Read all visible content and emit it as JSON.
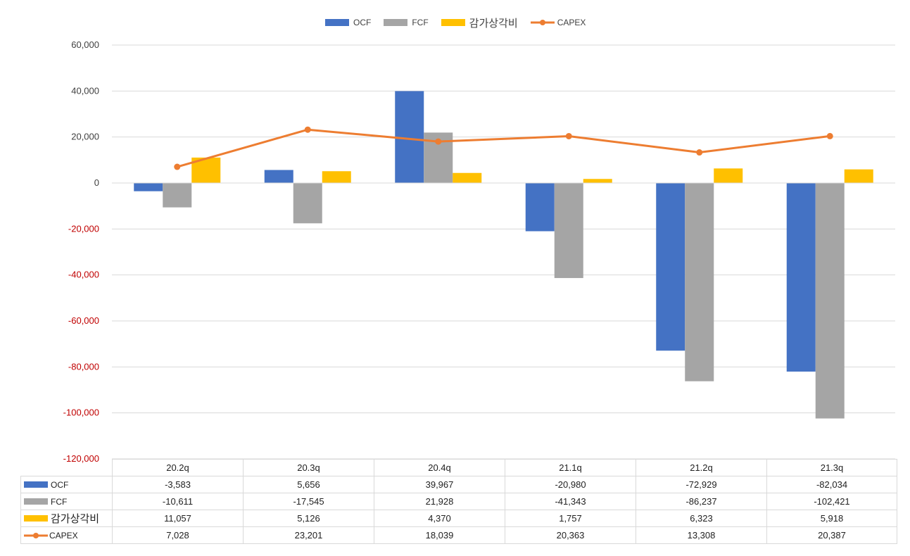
{
  "legend": {
    "ocf": "OCF",
    "fcf": "FCF",
    "dep": "감가상각비",
    "capex": "CAPEX"
  },
  "colors": {
    "ocf": "#4472C4",
    "fcf": "#A5A5A5",
    "dep": "#FFC000",
    "capex": "#ED7D31",
    "negative_tick": "#C00000",
    "positive_tick": "#404040"
  },
  "chart_data": {
    "type": "bar",
    "combo_line_series": "CAPEX",
    "categories": [
      "20.2q",
      "20.3q",
      "20.4q",
      "21.1q",
      "21.2q",
      "21.3q"
    ],
    "series": [
      {
        "name": "OCF",
        "kind": "bar",
        "values": [
          -3583,
          5656,
          39967,
          -20980,
          -72929,
          -82034
        ]
      },
      {
        "name": "FCF",
        "kind": "bar",
        "values": [
          -10611,
          -17545,
          21928,
          -41343,
          -86237,
          -102421
        ]
      },
      {
        "name": "감가상각비",
        "kind": "bar",
        "values": [
          11057,
          5126,
          4370,
          1757,
          6323,
          5918
        ]
      },
      {
        "name": "CAPEX",
        "kind": "line",
        "values": [
          7028,
          23201,
          18039,
          20363,
          13308,
          20387
        ]
      }
    ],
    "ylim": [
      -120000,
      60000
    ],
    "ytick_step": 20000,
    "ytick_labels": [
      "60,000",
      "40,000",
      "20,000",
      "0",
      "-20,000",
      "-40,000",
      "-60,000",
      "-80,000",
      "-100,000",
      "-120,000"
    ],
    "grid": true,
    "legend_position": "top-center",
    "title": "",
    "xlabel": "",
    "ylabel": ""
  },
  "table": {
    "rows": [
      {
        "key": "ocf",
        "label": "OCF",
        "cells": [
          "-3,583",
          "5,656",
          "39,967",
          "-20,980",
          "-72,929",
          "-82,034"
        ]
      },
      {
        "key": "fcf",
        "label": "FCF",
        "cells": [
          "-10,611",
          "-17,545",
          "21,928",
          "-41,343",
          "-86,237",
          "-102,421"
        ]
      },
      {
        "key": "dep",
        "label": "감가상각비",
        "cells": [
          "11,057",
          "5,126",
          "4,370",
          "1,757",
          "6,323",
          "5,918"
        ]
      },
      {
        "key": "capex",
        "label": "CAPEX",
        "cells": [
          "7,028",
          "23,201",
          "18,039",
          "20,363",
          "13,308",
          "20,387"
        ]
      }
    ]
  }
}
